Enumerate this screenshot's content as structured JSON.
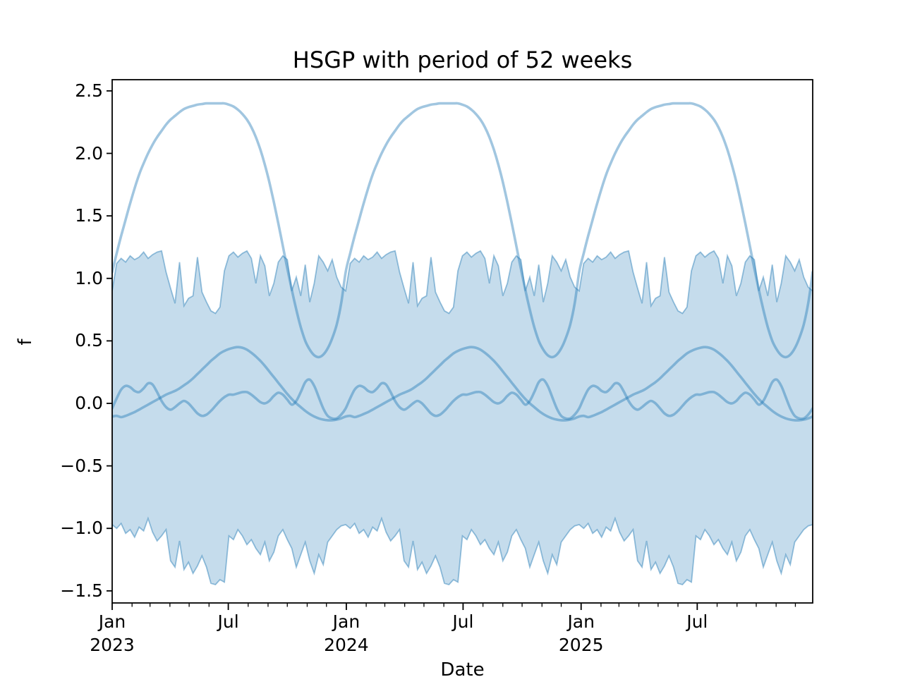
{
  "figure": {
    "title": "HSGP with period of 52 weeks",
    "xlabel": "Date",
    "ylabel": "f"
  },
  "colors": {
    "series_base": "#1f77b4",
    "sample_line_apparent": "#a1c7e0",
    "band_fill_apparent": "#c8dcec",
    "band_edge_apparent": "#9cc3dd",
    "axis": "#000000",
    "background": "#ffffff",
    "sample_line_alpha": 0.42,
    "band_fill_alpha": 0.26,
    "band_edge_alpha": 0.45
  },
  "chart_data": {
    "type": "line",
    "title": "HSGP with period of 52 weeks",
    "xlabel": "Date",
    "ylabel": "f",
    "grid": false,
    "legend": "none",
    "period_weeks": 52,
    "n_periods": 3,
    "x_axis": {
      "unit": "weeks since Jan 2023 (weekly samples)",
      "range_weeks": [
        0,
        156
      ],
      "range_days": [
        0,
        1092
      ],
      "major_ticks": [
        {
          "day": 0,
          "line1": "Jan",
          "line2": "2023"
        },
        {
          "day": 181,
          "line1": "Jul",
          "line2": ""
        },
        {
          "day": 365,
          "line1": "Jan",
          "line2": "2024"
        },
        {
          "day": 547,
          "line1": "Jul",
          "line2": ""
        },
        {
          "day": 731,
          "line1": "Jan",
          "line2": "2025"
        },
        {
          "day": 912,
          "line1": "Jul",
          "line2": ""
        }
      ],
      "minor_tick_days": [
        31,
        59,
        90,
        120,
        151,
        212,
        243,
        273,
        304,
        334,
        396,
        425,
        456,
        486,
        517,
        578,
        609,
        639,
        670,
        700,
        762,
        790,
        821,
        851,
        882,
        943,
        974,
        1004,
        1035,
        1065
      ]
    },
    "y_axis": {
      "lim": [
        -1.6,
        2.59
      ],
      "ticks": [
        {
          "value": 2.5,
          "label": "2.5"
        },
        {
          "value": 2.0,
          "label": "2.0"
        },
        {
          "value": 1.5,
          "label": "1.5"
        },
        {
          "value": 1.0,
          "label": "1.0"
        },
        {
          "value": 0.5,
          "label": "0.5"
        },
        {
          "value": 0.0,
          "label": "0.0"
        },
        {
          "value": -0.5,
          "label": "−0.5"
        },
        {
          "value": -1.0,
          "label": "−1.0"
        },
        {
          "value": -1.5,
          "label": "−1.5"
        }
      ]
    },
    "band": {
      "name": "hdi-band",
      "style": "jagged weekly fill, repeats every 52 weeks",
      "upper_weekly": [
        0.9,
        1.12,
        1.16,
        1.13,
        1.18,
        1.15,
        1.17,
        1.21,
        1.16,
        1.19,
        1.21,
        1.22,
        1.05,
        0.92,
        0.8,
        1.13,
        0.78,
        0.84,
        0.86,
        1.17,
        0.89,
        0.81,
        0.74,
        0.72,
        0.77,
        1.06,
        1.18,
        1.21,
        1.17,
        1.2,
        1.22,
        1.16,
        0.96,
        1.18,
        1.1,
        0.86,
        0.96,
        1.13,
        1.18,
        1.15,
        0.9,
        1.01,
        0.86,
        1.11,
        0.81,
        0.96,
        1.18,
        1.13,
        1.06,
        1.15,
        1.01,
        0.93
      ],
      "lower_weekly": [
        -0.97,
        -1.0,
        -0.96,
        -1.04,
        -1.01,
        -1.07,
        -0.99,
        -1.02,
        -0.92,
        -1.03,
        -1.1,
        -1.06,
        -1.01,
        -1.26,
        -1.31,
        -1.1,
        -1.33,
        -1.27,
        -1.36,
        -1.3,
        -1.22,
        -1.31,
        -1.44,
        -1.45,
        -1.41,
        -1.43,
        -1.06,
        -1.09,
        -1.01,
        -1.06,
        -1.13,
        -1.09,
        -1.16,
        -1.21,
        -1.11,
        -1.26,
        -1.19,
        -1.06,
        -1.01,
        -1.09,
        -1.16,
        -1.31,
        -1.21,
        -1.11,
        -1.26,
        -1.36,
        -1.21,
        -1.29,
        -1.11,
        -1.06,
        -1.01,
        -0.98
      ]
    },
    "series": [
      {
        "name": "gp-sample-1",
        "style": "smooth, 52-week periodic",
        "weekly": [
          1.05,
          1.2,
          1.34,
          1.47,
          1.6,
          1.72,
          1.83,
          1.92,
          2.0,
          2.07,
          2.13,
          2.18,
          2.23,
          2.27,
          2.3,
          2.33,
          2.355,
          2.37,
          2.38,
          2.39,
          2.395,
          2.4,
          2.4,
          2.4,
          2.4,
          2.4,
          2.39,
          2.375,
          2.35,
          2.315,
          2.27,
          2.21,
          2.13,
          2.03,
          1.91,
          1.77,
          1.61,
          1.44,
          1.26,
          1.08,
          0.91,
          0.75,
          0.61,
          0.5,
          0.43,
          0.385,
          0.37,
          0.39,
          0.44,
          0.52,
          0.63,
          0.8
        ]
      },
      {
        "name": "gp-sample-2",
        "style": "smooth, 52-week periodic",
        "weekly": [
          -0.105,
          -0.1,
          -0.11,
          -0.1,
          -0.085,
          -0.07,
          -0.05,
          -0.03,
          -0.01,
          0.01,
          0.03,
          0.05,
          0.07,
          0.085,
          0.1,
          0.12,
          0.145,
          0.17,
          0.2,
          0.235,
          0.27,
          0.305,
          0.34,
          0.37,
          0.4,
          0.42,
          0.435,
          0.445,
          0.45,
          0.445,
          0.43,
          0.405,
          0.375,
          0.34,
          0.3,
          0.255,
          0.21,
          0.165,
          0.12,
          0.075,
          0.035,
          0.0,
          -0.03,
          -0.06,
          -0.085,
          -0.105,
          -0.12,
          -0.13,
          -0.135,
          -0.135,
          -0.13,
          -0.12
        ]
      },
      {
        "name": "gp-sample-3",
        "style": "wiggly, 52-week periodic",
        "weekly": [
          -0.04,
          0.04,
          0.11,
          0.14,
          0.13,
          0.1,
          0.09,
          0.12,
          0.16,
          0.15,
          0.09,
          0.02,
          -0.03,
          -0.05,
          -0.03,
          0.0,
          0.02,
          0.0,
          -0.04,
          -0.08,
          -0.1,
          -0.09,
          -0.06,
          -0.02,
          0.02,
          0.05,
          0.07,
          0.07,
          0.08,
          0.09,
          0.09,
          0.07,
          0.04,
          0.01,
          0.0,
          0.02,
          0.06,
          0.085,
          0.07,
          0.03,
          -0.01,
          0.02,
          0.09,
          0.17,
          0.19,
          0.14,
          0.05,
          -0.04,
          -0.1,
          -0.12,
          -0.12,
          -0.09
        ]
      }
    ]
  }
}
